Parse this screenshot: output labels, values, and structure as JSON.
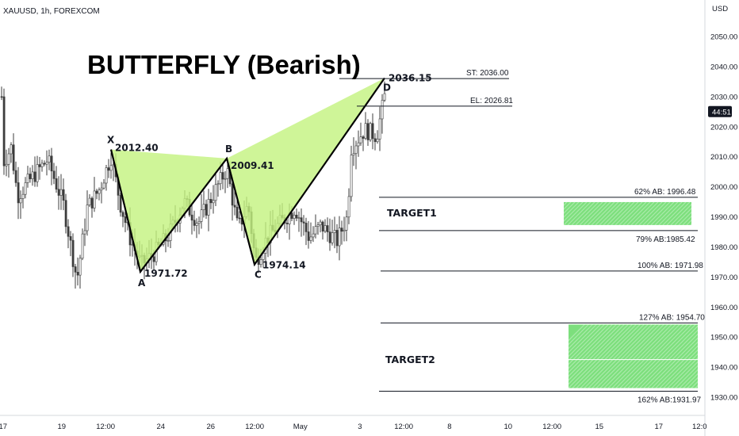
{
  "header": {
    "symbol": "XAUUSD, 1h, FOREXCOM"
  },
  "title": "BUTTERFLY (Bearish)",
  "price_axis": {
    "currency": "USD",
    "ticks": [
      "2050.00",
      "2040.00",
      "2030.00",
      "2020.00",
      "2010.00",
      "2000.00",
      "1990.00",
      "1980.00",
      "1970.00",
      "1960.00",
      "1950.00",
      "1940.00",
      "1930.00"
    ],
    "current_badge": "44:51",
    "badge_color": "#131722"
  },
  "time_axis": {
    "ticks": [
      "17",
      "19",
      "12:00",
      "24",
      "26",
      "12:00",
      "May",
      "3",
      "12:00",
      "8",
      "10",
      "12:00",
      "15",
      "17",
      "12:0"
    ]
  },
  "colors": {
    "pattern_fill": "#c3f27e",
    "pattern_line": "#000000",
    "candle": "#3d3d3d",
    "target_fill": "#66d966",
    "level_line": "#131722"
  },
  "chart_data": {
    "type": "candlestick",
    "symbol": "XAUUSD",
    "timeframe": "1h",
    "ylim": [
      1925,
      2057
    ],
    "harmonic_pattern": {
      "name": "BUTTERFLY (Bearish)",
      "points": [
        {
          "label": "X",
          "price": 2012.4,
          "price_text": "2012.40"
        },
        {
          "label": "A",
          "price": 1971.72,
          "price_text": "1971.72"
        },
        {
          "label": "B",
          "price": 2009.41,
          "price_text": "2009.41"
        },
        {
          "label": "C",
          "price": 1974.14,
          "price_text": "1974.14"
        },
        {
          "label": "D",
          "price": 2036.15,
          "price_text": "2036.15"
        }
      ]
    },
    "levels": [
      {
        "label": "ST: 2036.00",
        "price": 2036.0
      },
      {
        "label": "EL: 2026.81",
        "price": 2026.81
      },
      {
        "label": "62% AB: 1996.48",
        "price": 1996.48
      },
      {
        "label": "79% AB:1985.42",
        "price": 1985.42
      },
      {
        "label": "100% AB: 1971.98",
        "price": 1971.98
      },
      {
        "label": "127% AB: 1954.70",
        "price": 1954.7
      },
      {
        "label": "162% AB:1931.97",
        "price": 1931.97
      }
    ],
    "targets": [
      {
        "label": "TARGET1",
        "from": 1985.42,
        "to": 1996.48
      },
      {
        "label": "TARGET2",
        "from": 1931.97,
        "to": 1954.7
      }
    ]
  }
}
